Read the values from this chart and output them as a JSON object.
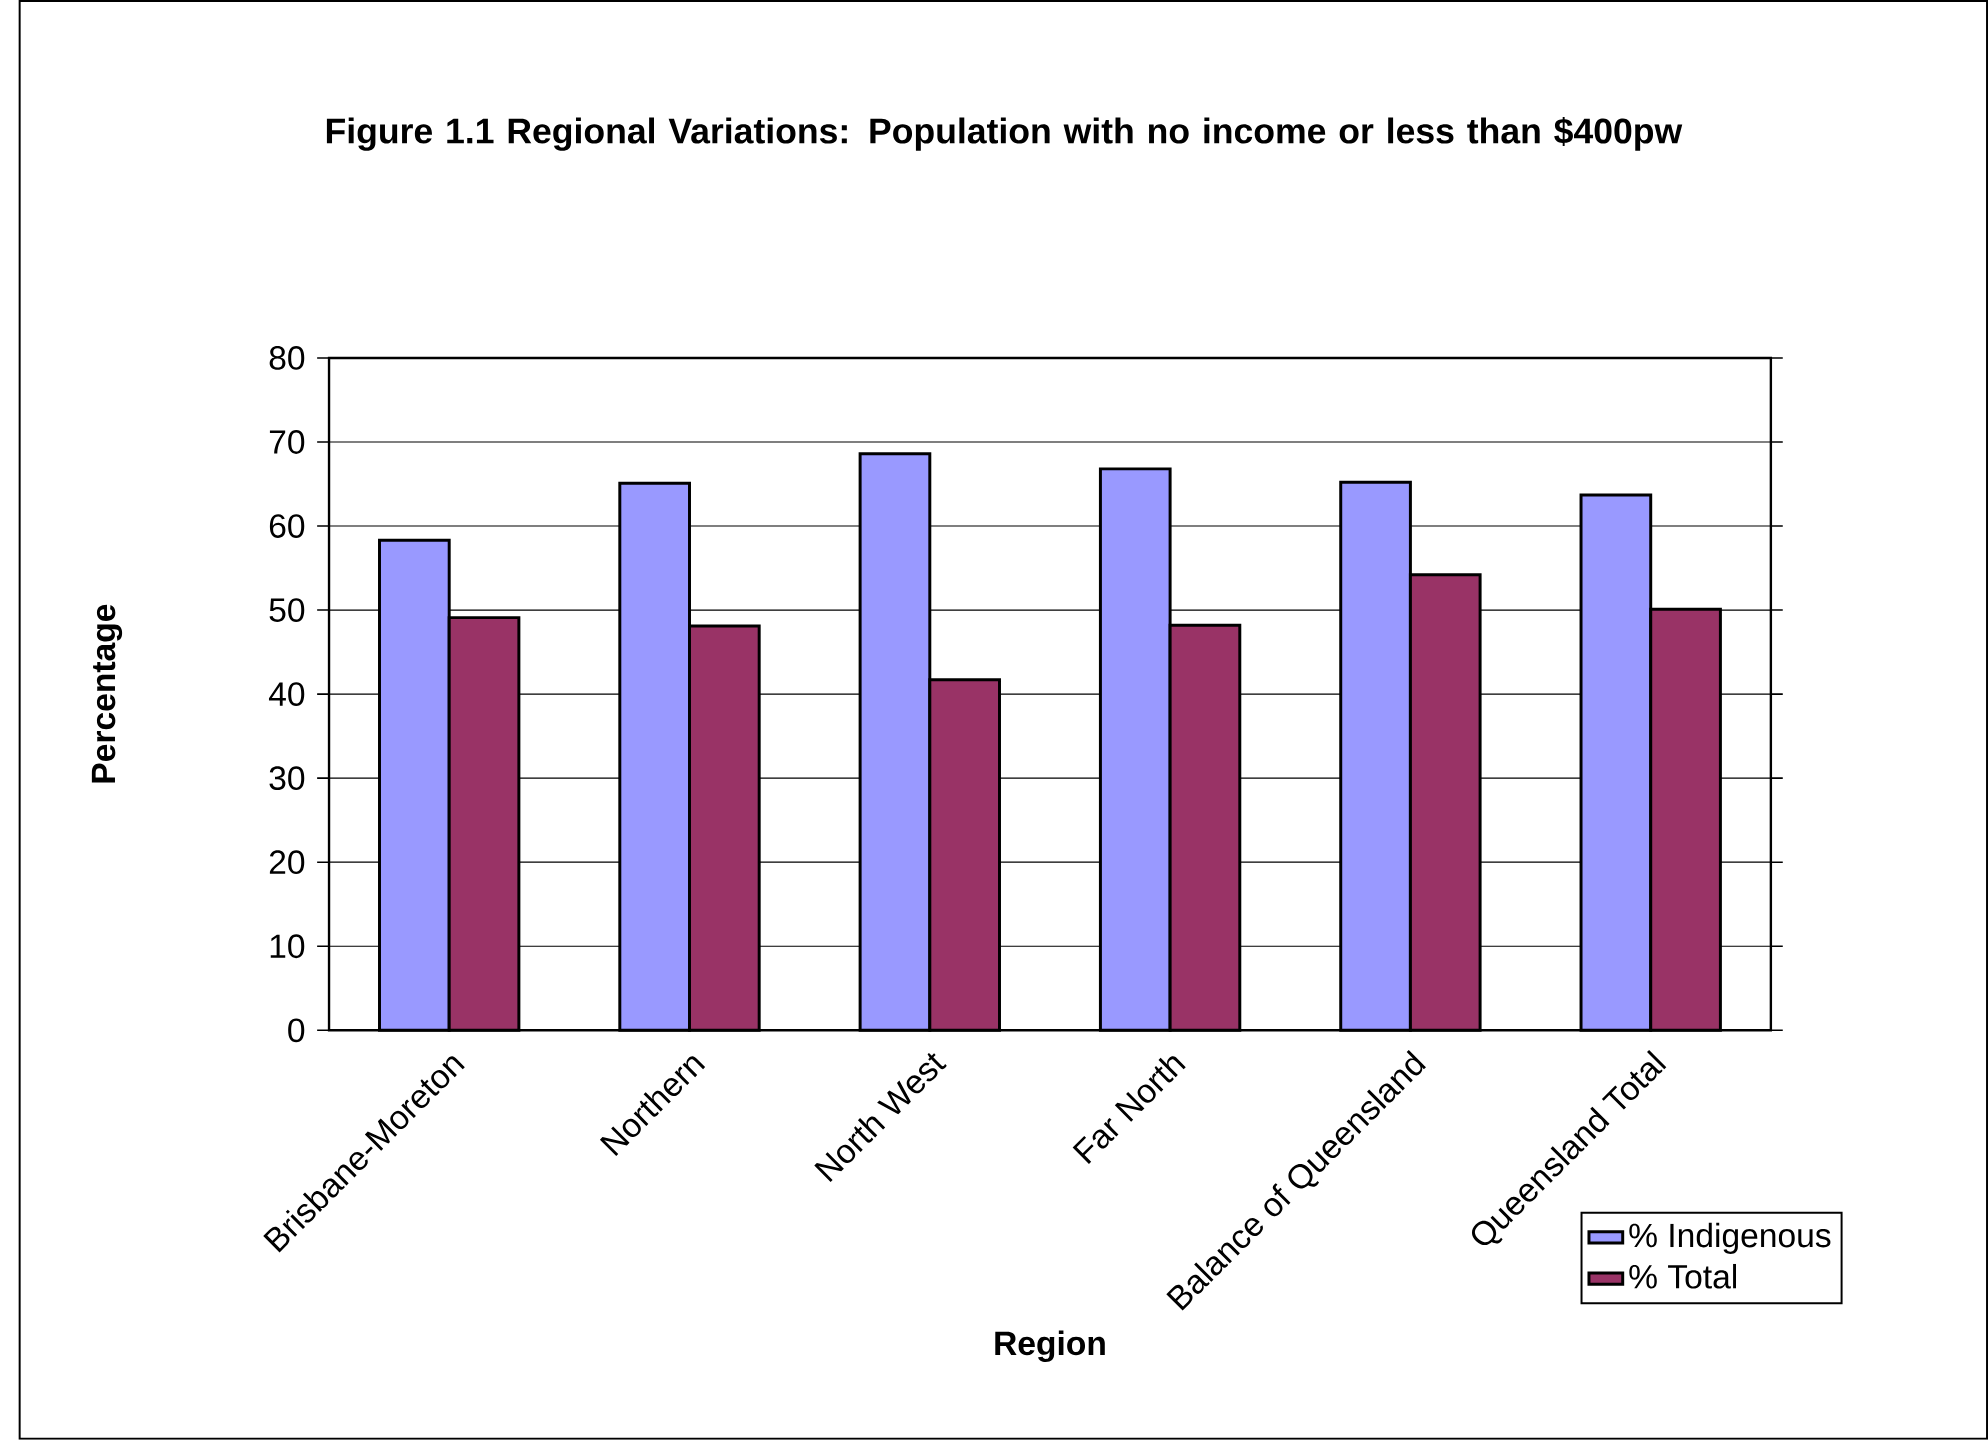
{
  "chart_data": {
    "type": "bar",
    "title": "Figure 1.1 Regional Variations: Population with no income or less than $400pw",
    "xlabel": "Region",
    "ylabel": "Percentage",
    "categories": [
      "Brisbane-Moreton",
      "Northern",
      "North West",
      "Far North",
      "Balance of Queensland",
      "Queensland Total"
    ],
    "series": [
      {
        "name": "% Indigenous",
        "color": "#9999ff",
        "values": [
          58.3,
          65.1,
          68.6,
          66.8,
          65.2,
          63.7
        ]
      },
      {
        "name": "% Total",
        "color": "#993366",
        "values": [
          49.1,
          48.1,
          41.7,
          48.2,
          54.2,
          50.1
        ]
      }
    ],
    "ylim": [
      0,
      80
    ],
    "yticks": [
      0,
      10,
      20,
      30,
      40,
      50,
      60,
      70,
      80
    ],
    "grid": "y",
    "legend": "bottom right"
  }
}
